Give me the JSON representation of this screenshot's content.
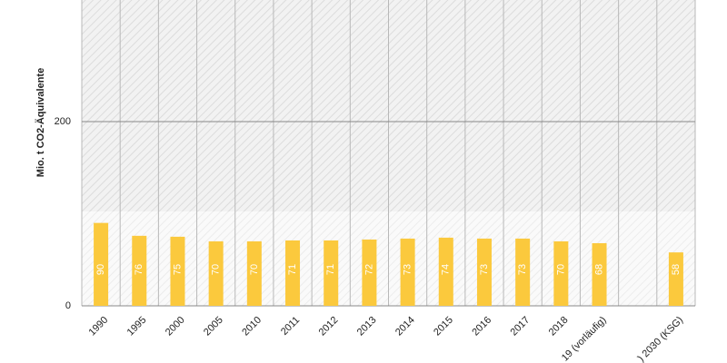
{
  "chart_data": {
    "type": "bar",
    "y_label": "Mio. t CO2-Äquivalente",
    "categories": [
      "1990",
      "1995",
      "2000",
      "2005",
      "2010",
      "2011",
      "2012",
      "2013",
      "2014",
      "2015",
      "2016",
      "2017",
      "2018",
      "19 (vorläufig)",
      null,
      ") 2030 (KSG)"
    ],
    "values": [
      90,
      76,
      75,
      70,
      70,
      71,
      71,
      72,
      73,
      74,
      73,
      73,
      70,
      68,
      null,
      58
    ],
    "color": "#fbc93d",
    "ylim": [
      0,
      332
    ],
    "yticks": [
      0,
      200
    ],
    "grid": true
  }
}
